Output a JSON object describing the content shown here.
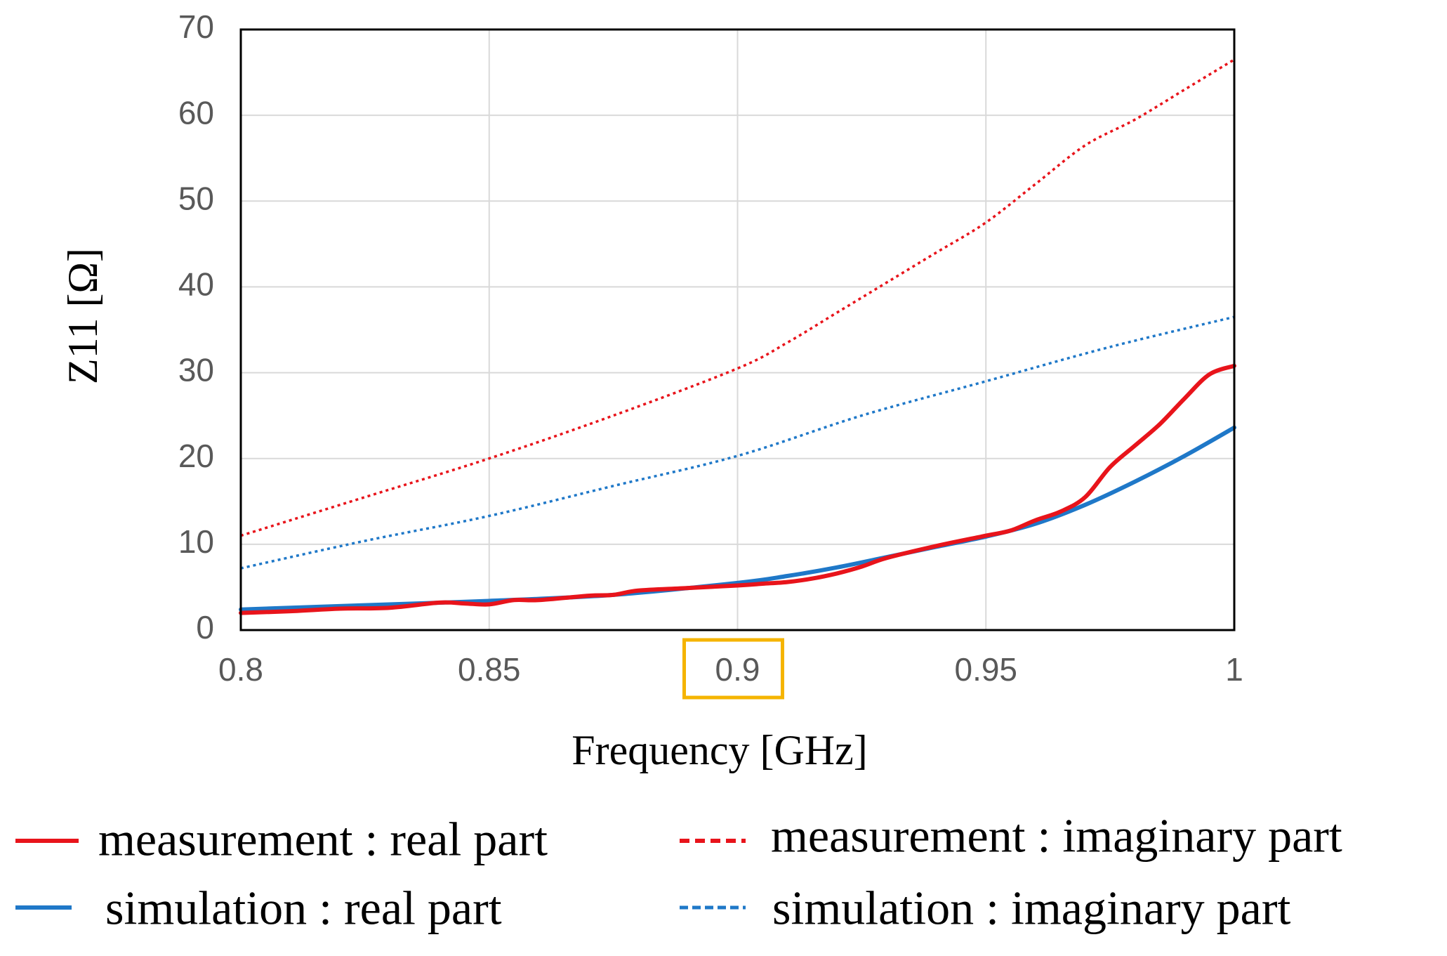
{
  "chart_data": {
    "type": "line",
    "title": "",
    "xlabel": "Frequency  [GHz]",
    "ylabel": "Z11 [Ω]",
    "xlim": [
      0.8,
      1.0
    ],
    "ylim": [
      0,
      70
    ],
    "xticks": [
      0.8,
      0.85,
      0.9,
      0.95,
      1.0
    ],
    "xtick_labels": [
      "0.8",
      "0.85",
      "0.9",
      "0.95",
      "1"
    ],
    "yticks": [
      0,
      10,
      20,
      30,
      40,
      50,
      60,
      70
    ],
    "ytick_labels": [
      "0",
      "10",
      "20",
      "30",
      "40",
      "50",
      "60",
      "70"
    ],
    "highlighted_tick": "0.9",
    "highlight_color": "#f5b400",
    "grid": true,
    "legend_position": "bottom",
    "series": [
      {
        "name": "measurement : real part",
        "color": "#e8141b",
        "style": "solid",
        "x": [
          0.8,
          0.81,
          0.82,
          0.83,
          0.84,
          0.845,
          0.85,
          0.855,
          0.86,
          0.87,
          0.875,
          0.88,
          0.89,
          0.9,
          0.905,
          0.91,
          0.915,
          0.92,
          0.925,
          0.93,
          0.94,
          0.95,
          0.955,
          0.96,
          0.965,
          0.97,
          0.975,
          0.98,
          0.985,
          0.99,
          0.995,
          1.0
        ],
        "y": [
          2.0,
          2.2,
          2.5,
          2.6,
          3.2,
          3.1,
          3.0,
          3.5,
          3.5,
          4.0,
          4.1,
          4.6,
          4.9,
          5.2,
          5.4,
          5.6,
          6.0,
          6.6,
          7.4,
          8.4,
          9.8,
          11.0,
          11.6,
          12.8,
          13.8,
          15.5,
          19.0,
          21.5,
          24.0,
          27.0,
          29.8,
          30.8
        ]
      },
      {
        "name": "measurement : imaginary part",
        "color": "#e8141b",
        "style": "dotted",
        "x": [
          0.8,
          0.825,
          0.85,
          0.875,
          0.9,
          0.91,
          0.92,
          0.93,
          0.94,
          0.95,
          0.96,
          0.97,
          0.98,
          0.99,
          1.0
        ],
        "y": [
          11.0,
          15.5,
          20.0,
          25.0,
          30.5,
          33.5,
          37.0,
          40.5,
          44.0,
          47.5,
          52.0,
          56.5,
          59.5,
          63.0,
          66.5
        ]
      },
      {
        "name": "simulation : real part",
        "color": "#1f78c8",
        "style": "solid",
        "x": [
          0.8,
          0.825,
          0.85,
          0.875,
          0.9,
          0.91,
          0.92,
          0.93,
          0.94,
          0.95,
          0.96,
          0.97,
          0.98,
          0.99,
          1.0
        ],
        "y": [
          2.4,
          2.9,
          3.4,
          4.1,
          5.5,
          6.3,
          7.3,
          8.5,
          9.7,
          10.9,
          12.4,
          14.6,
          17.3,
          20.3,
          23.6
        ]
      },
      {
        "name": "simulation : imaginary part",
        "color": "#1f78c8",
        "style": "dotted",
        "x": [
          0.8,
          0.825,
          0.85,
          0.875,
          0.9,
          0.925,
          0.95,
          0.975,
          1.0
        ],
        "y": [
          7.2,
          10.4,
          13.3,
          16.8,
          20.3,
          25.0,
          29.0,
          33.0,
          36.5
        ]
      }
    ]
  }
}
